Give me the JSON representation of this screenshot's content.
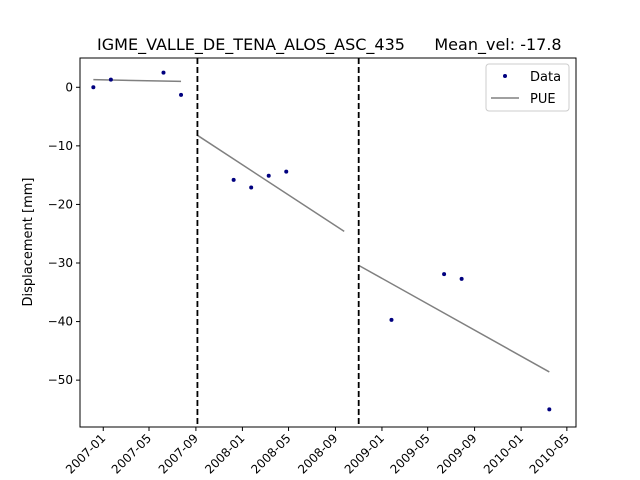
{
  "chart_data": {
    "type": "scatter",
    "title": "IGME_VALLE_DE_TENA_ALOS_ASC_435",
    "subtitle": "Mean_vel: -17.8",
    "xlabel": "",
    "ylabel": "Displacement [mm]",
    "xlim": [
      "2006-11-01",
      "2010-05-25"
    ],
    "ylim": [
      -58,
      5
    ],
    "x_ticks": [
      "2007-01",
      "2007-05",
      "2007-09",
      "2008-01",
      "2008-05",
      "2008-09",
      "2009-01",
      "2009-05",
      "2009-09",
      "2010-01",
      "2010-05"
    ],
    "y_ticks": [
      0,
      -10,
      -20,
      -30,
      -40,
      -50
    ],
    "grid": false,
    "legend": {
      "placement": "top-right",
      "entries": [
        "Data",
        "PUE"
      ]
    },
    "series": [
      {
        "name": "Data",
        "kind": "points",
        "color": "#00007f",
        "points": [
          {
            "x": "2006-12-06",
            "y": 0.0
          },
          {
            "x": "2007-01-21",
            "y": 1.3
          },
          {
            "x": "2007-06-08",
            "y": 2.5
          },
          {
            "x": "2007-07-24",
            "y": -1.3
          },
          {
            "x": "2007-12-09",
            "y": -15.8
          },
          {
            "x": "2008-01-24",
            "y": -17.1
          },
          {
            "x": "2008-03-10",
            "y": -15.1
          },
          {
            "x": "2008-04-25",
            "y": -14.4
          },
          {
            "x": "2009-01-26",
            "y": -39.7
          },
          {
            "x": "2009-06-13",
            "y": -31.9
          },
          {
            "x": "2009-07-29",
            "y": -32.7
          },
          {
            "x": "2010-03-16",
            "y": -55.0
          }
        ]
      },
      {
        "name": "PUE",
        "kind": "segments",
        "color": "#808080",
        "segments": [
          [
            {
              "x": "2006-12-06",
              "y": 1.3
            },
            {
              "x": "2007-07-24",
              "y": 1.0
            }
          ],
          [
            {
              "x": "2007-09-05",
              "y": -8.2
            },
            {
              "x": "2008-09-24",
              "y": -24.6
            }
          ],
          [
            {
              "x": "2008-11-01",
              "y": -30.4
            },
            {
              "x": "2010-03-16",
              "y": -48.6
            }
          ]
        ]
      }
    ],
    "vertical_lines": {
      "style": "dashed",
      "color": "#000000",
      "x": [
        "2007-09-05",
        "2008-11-01"
      ]
    }
  }
}
